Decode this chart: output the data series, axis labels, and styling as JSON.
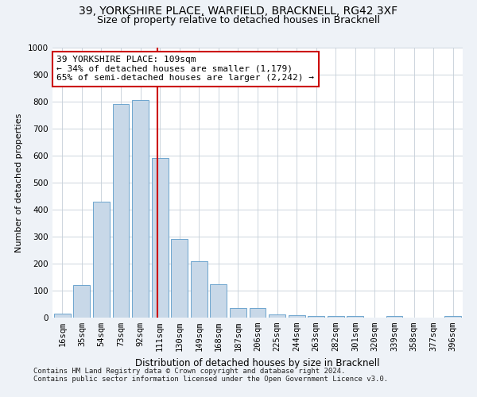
{
  "title1": "39, YORKSHIRE PLACE, WARFIELD, BRACKNELL, RG42 3XF",
  "title2": "Size of property relative to detached houses in Bracknell",
  "xlabel": "Distribution of detached houses by size in Bracknell",
  "ylabel": "Number of detached properties",
  "categories": [
    "16sqm",
    "35sqm",
    "54sqm",
    "73sqm",
    "92sqm",
    "111sqm",
    "130sqm",
    "149sqm",
    "168sqm",
    "187sqm",
    "206sqm",
    "225sqm",
    "244sqm",
    "263sqm",
    "282sqm",
    "301sqm",
    "320sqm",
    "339sqm",
    "358sqm",
    "377sqm",
    "396sqm"
  ],
  "values": [
    15,
    120,
    430,
    790,
    805,
    590,
    290,
    210,
    125,
    35,
    35,
    12,
    10,
    5,
    5,
    5,
    0,
    5,
    0,
    0,
    5
  ],
  "bar_color": "#c8d8e8",
  "bar_edge_color": "#5b9ac8",
  "vline_color": "#cc0000",
  "annotation_line1": "39 YORKSHIRE PLACE: 109sqm",
  "annotation_line2": "← 34% of detached houses are smaller (1,179)",
  "annotation_line3": "65% of semi-detached houses are larger (2,242) →",
  "annotation_box_color": "#ffffff",
  "annotation_edge_color": "#cc0000",
  "ylim": [
    0,
    1000
  ],
  "yticks": [
    0,
    100,
    200,
    300,
    400,
    500,
    600,
    700,
    800,
    900,
    1000
  ],
  "footer1": "Contains HM Land Registry data © Crown copyright and database right 2024.",
  "footer2": "Contains public sector information licensed under the Open Government Licence v3.0.",
  "background_color": "#eef2f7",
  "plot_bg_color": "#ffffff",
  "title1_fontsize": 10,
  "title2_fontsize": 9,
  "xlabel_fontsize": 8.5,
  "ylabel_fontsize": 8,
  "tick_fontsize": 7.5,
  "footer_fontsize": 6.5,
  "annotation_fontsize": 8
}
